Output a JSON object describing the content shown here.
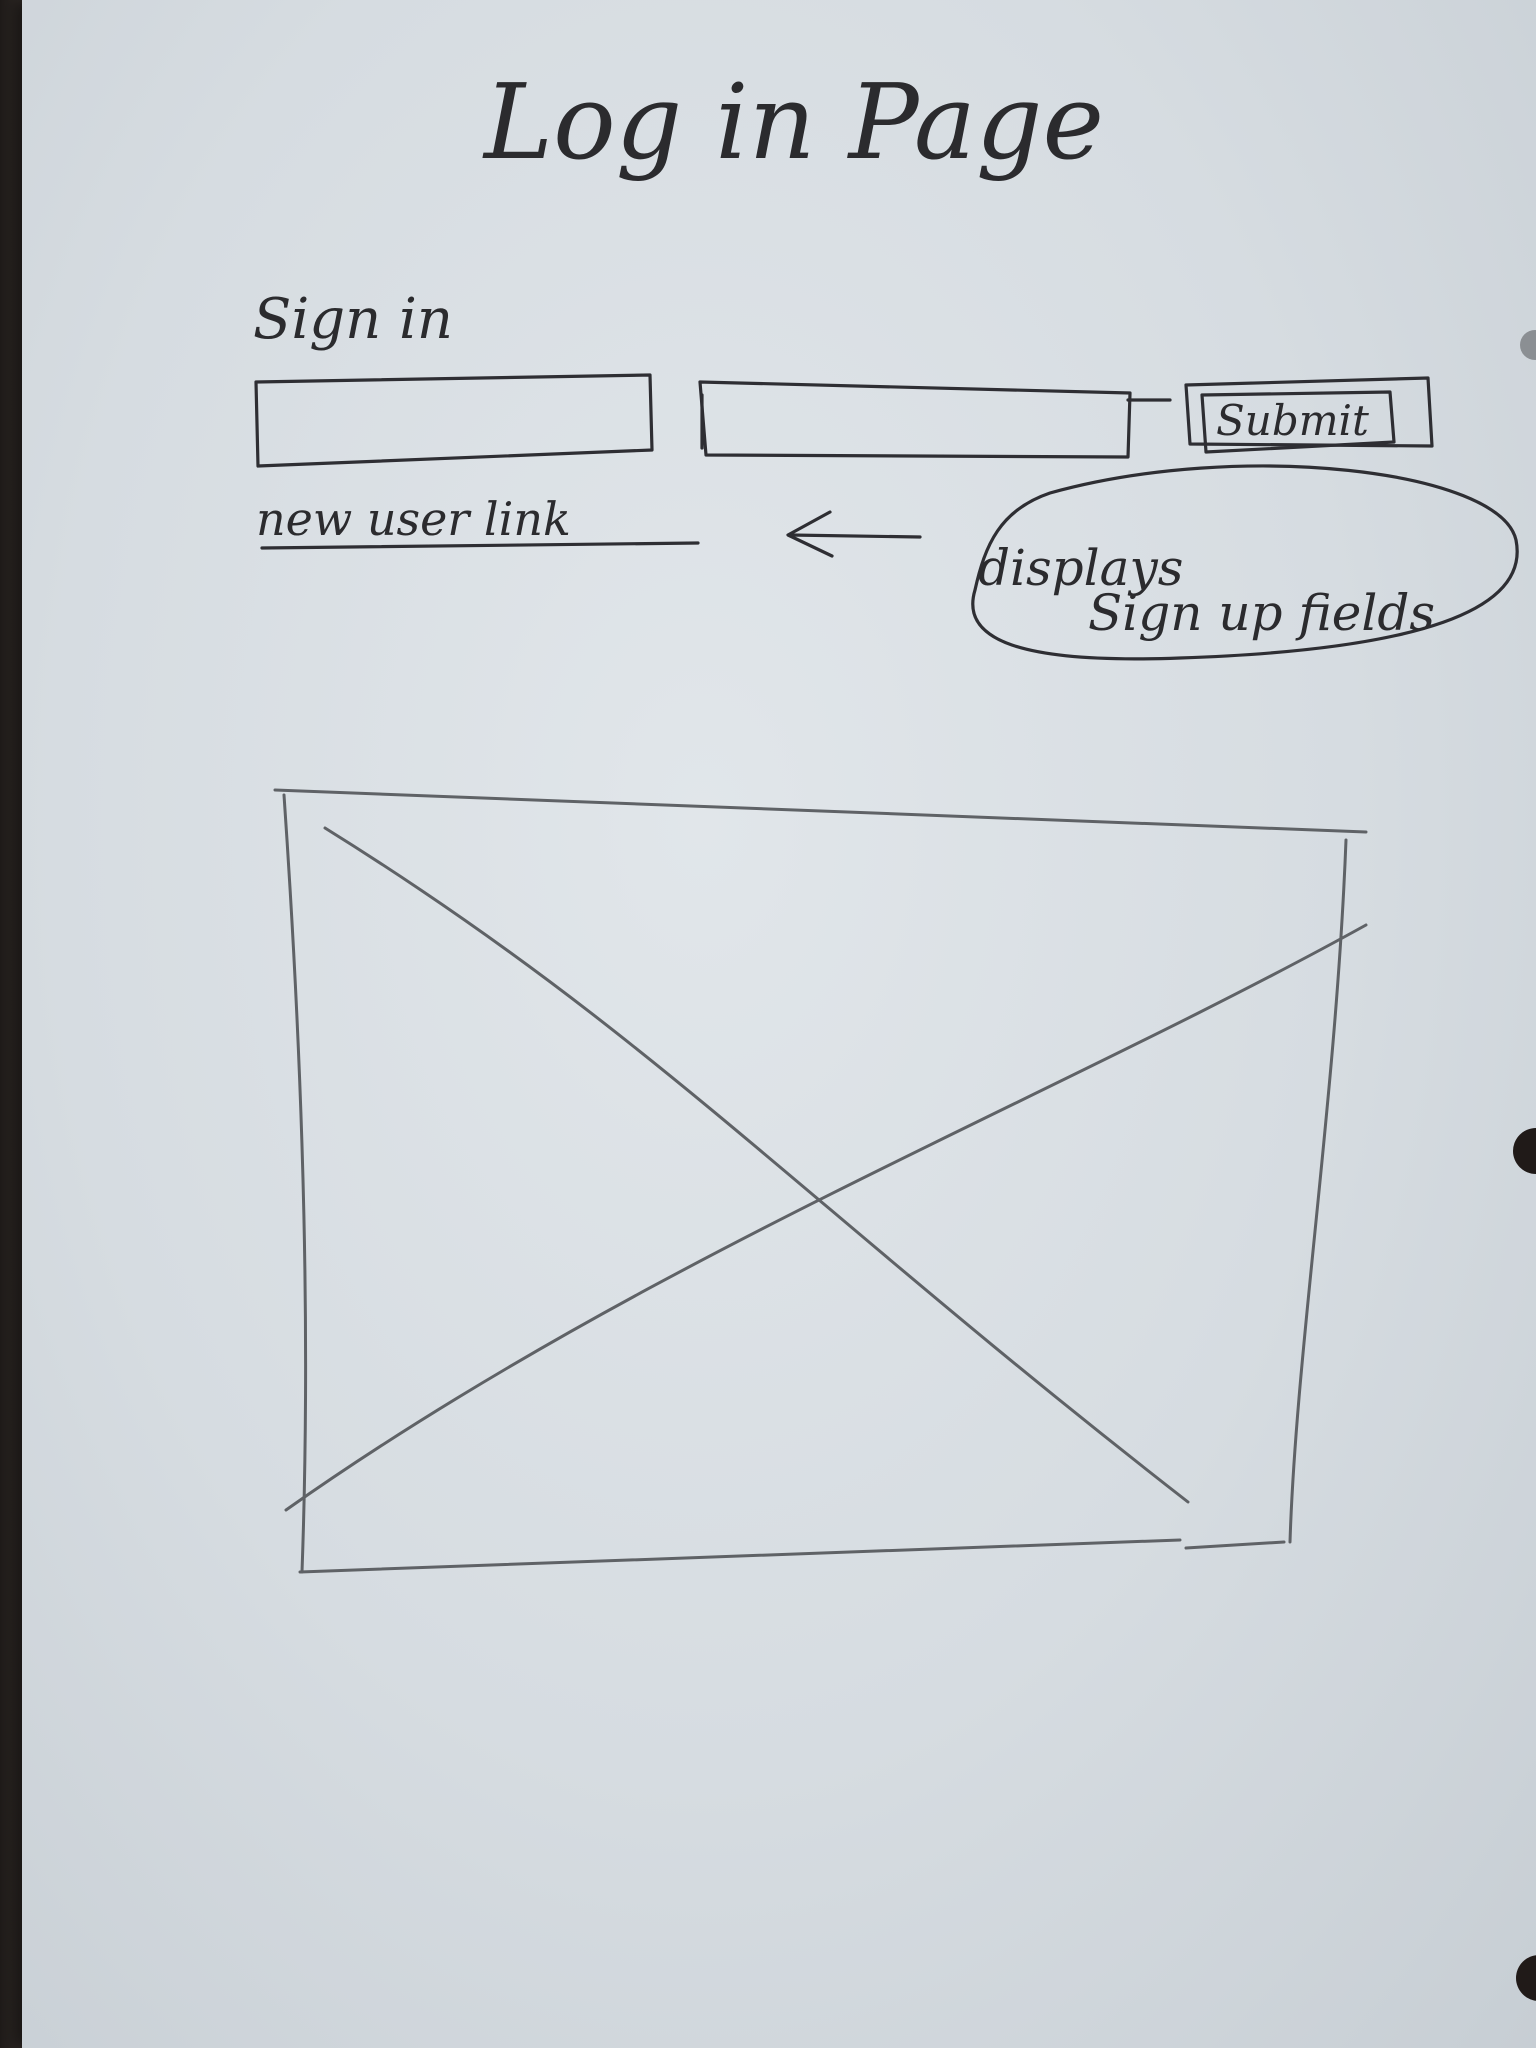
{
  "page": {
    "title": "Log in Page"
  },
  "signin": {
    "heading": "Sign in",
    "submit_label": "Submit",
    "username_value": "",
    "password_value": ""
  },
  "new_user": {
    "link_label": "new user link",
    "note_line1": "displays",
    "note_line2": "Sign up fields"
  },
  "image_placeholder": {
    "icon": "image-placeholder-icon"
  },
  "colors": {
    "paper": "#dde2e6",
    "pencil": "#5f6266",
    "ink": "#2b2b2e"
  }
}
